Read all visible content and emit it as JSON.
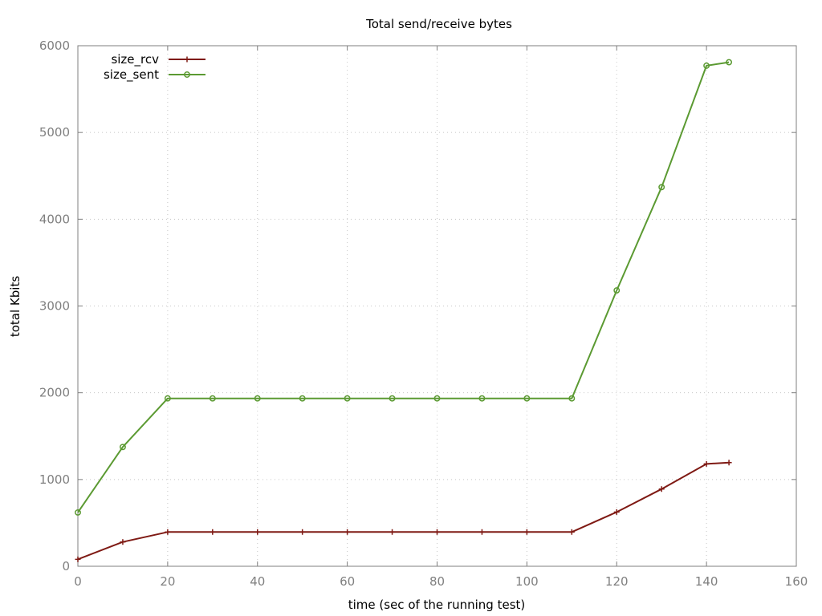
{
  "chart_data": {
    "type": "line",
    "title": "Total send/receive bytes",
    "xlabel": "time (sec of the running test)",
    "ylabel": "total Kbits",
    "xlim": [
      0,
      160
    ],
    "ylim": [
      0,
      6000
    ],
    "x_ticks": [
      0,
      20,
      40,
      60,
      80,
      100,
      120,
      140,
      160
    ],
    "y_ticks": [
      0,
      1000,
      2000,
      3000,
      4000,
      5000,
      6000
    ],
    "grid": true,
    "legend_position": "top-left",
    "series": [
      {
        "name": "size_rcv",
        "color": "#7f1a14",
        "marker": "plus",
        "x": [
          0,
          10,
          20,
          30,
          40,
          50,
          60,
          70,
          80,
          90,
          100,
          110,
          120,
          130,
          140,
          145
        ],
        "y": [
          80,
          280,
          395,
          395,
          395,
          395,
          395,
          395,
          395,
          395,
          395,
          395,
          625,
          890,
          1180,
          1195
        ]
      },
      {
        "name": "size_sent",
        "color": "#5b9a32",
        "marker": "circle",
        "x": [
          0,
          10,
          20,
          30,
          40,
          50,
          60,
          70,
          80,
          90,
          100,
          110,
          120,
          130,
          140,
          145
        ],
        "y": [
          620,
          1375,
          1935,
          1935,
          1935,
          1935,
          1935,
          1935,
          1935,
          1935,
          1935,
          1935,
          3180,
          4370,
          5770,
          5810
        ]
      }
    ]
  }
}
